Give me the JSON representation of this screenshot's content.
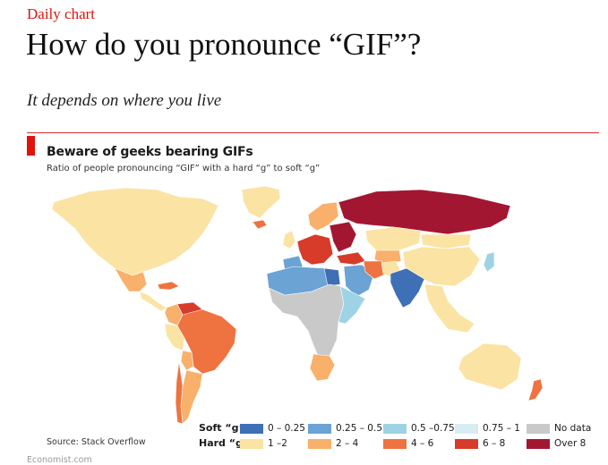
{
  "header": {
    "kicker": "Daily chart",
    "headline": "How do you pronounce “GIF”?",
    "rubric": "It depends on where you live"
  },
  "chart": {
    "title": "Beware of geeks bearing GIFs",
    "subtitle": "Ratio of people pronouncing “GIF” with a hard “g” to soft “g”",
    "source": "Source: Stack Overflow",
    "footer": "Economist.com"
  },
  "chart_data": {
    "type": "choropleth",
    "title": "Beware of geeks bearing GIFs",
    "subtitle": "Ratio of people pronouncing “GIF” with a hard “g” to soft “g”",
    "legend": {
      "soft_label": "Soft “g”",
      "hard_label": "Hard “g”",
      "soft": [
        {
          "label": "0 – 0.25",
          "color": "#3f6fb5"
        },
        {
          "label": "0.25 – 0.5",
          "color": "#6aa3d4"
        },
        {
          "label": "0.5 –0.75",
          "color": "#9dd3e5"
        },
        {
          "label": "0.75 – 1",
          "color": "#d7ecf3"
        },
        {
          "label": "No data",
          "color": "#c9c9c9"
        }
      ],
      "hard": [
        {
          "label": "1 –2",
          "color": "#fbe3a4"
        },
        {
          "label": "2 – 4",
          "color": "#f8b06a"
        },
        {
          "label": "4 – 6",
          "color": "#ee7340"
        },
        {
          "label": "6 – 8",
          "color": "#d73b2a"
        },
        {
          "label": "Over 8",
          "color": "#a31632"
        }
      ]
    },
    "regions": [
      {
        "name": "North America",
        "color": "#fbe3a4"
      },
      {
        "name": "Greenland",
        "color": "#fbe3a4"
      },
      {
        "name": "Mexico",
        "color": "#f8b06a"
      },
      {
        "name": "Caribbean",
        "color": "#ee7340"
      },
      {
        "name": "Central America",
        "color": "#fbe3a4"
      },
      {
        "name": "Brazil",
        "color": "#ee7340"
      },
      {
        "name": "Venezuela",
        "color": "#d73b2a"
      },
      {
        "name": "Colombia",
        "color": "#f8b06a"
      },
      {
        "name": "Peru",
        "color": "#fbe3a4"
      },
      {
        "name": "Bolivia",
        "color": "#f8b06a"
      },
      {
        "name": "Argentina",
        "color": "#f8b06a"
      },
      {
        "name": "Chile",
        "color": "#ee7340"
      },
      {
        "name": "Iceland",
        "color": "#ee7340"
      },
      {
        "name": "Scandinavia",
        "color": "#f8b06a"
      },
      {
        "name": "UK and Ireland",
        "color": "#fbe3a4"
      },
      {
        "name": "Western Europe",
        "color": "#d73b2a"
      },
      {
        "name": "Iberia",
        "color": "#6aa3d4"
      },
      {
        "name": "Eastern Europe",
        "color": "#a31632"
      },
      {
        "name": "Russia",
        "color": "#a31632"
      },
      {
        "name": "Kazakhstan",
        "color": "#fbe3a4"
      },
      {
        "name": "Central Asia",
        "color": "#f8b06a"
      },
      {
        "name": "Turkey",
        "color": "#d73b2a"
      },
      {
        "name": "Middle East",
        "color": "#6aa3d4"
      },
      {
        "name": "Iran",
        "color": "#ee7340"
      },
      {
        "name": "Pakistan",
        "color": "#fbe3a4"
      },
      {
        "name": "India",
        "color": "#3f6fb5"
      },
      {
        "name": "China",
        "color": "#fbe3a4"
      },
      {
        "name": "Mongolia",
        "color": "#fbe3a4"
      },
      {
        "name": "Southeast Asia",
        "color": "#fbe3a4"
      },
      {
        "name": "Japan",
        "color": "#9dd3e5"
      },
      {
        "name": "North Africa",
        "color": "#6aa3d4"
      },
      {
        "name": "Egypt",
        "color": "#3f6fb5"
      },
      {
        "name": "Sub-Saharan Africa",
        "color": "#c9c9c9"
      },
      {
        "name": "East Africa",
        "color": "#9dd3e5"
      },
      {
        "name": "Southern Africa",
        "color": "#f8b06a"
      },
      {
        "name": "Australia",
        "color": "#fbe3a4"
      },
      {
        "name": "New Zealand",
        "color": "#ee7340"
      }
    ]
  }
}
